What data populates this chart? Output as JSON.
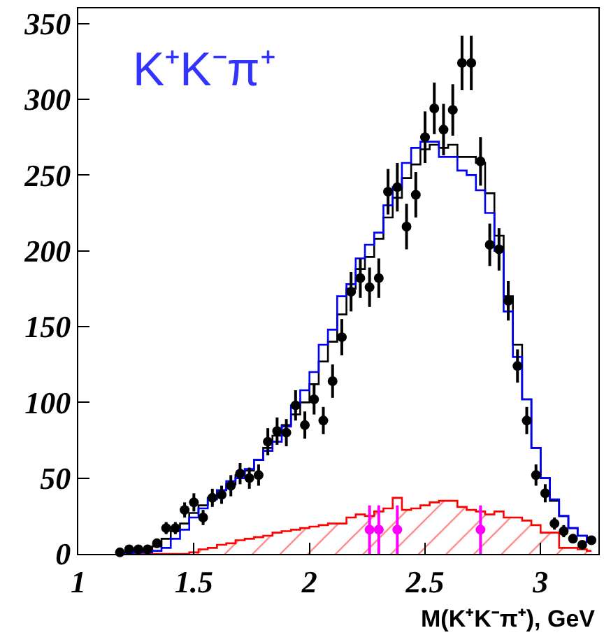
{
  "chart_data": {
    "type": "step",
    "title": "K⁺K⁻π⁺",
    "xlabel": "M(K⁺K⁻π⁺), GeV",
    "xlim": [
      1,
      3.25
    ],
    "xticks": [
      1,
      1.5,
      2,
      2.5,
      3
    ],
    "ylim": [
      0,
      360
    ],
    "yticks": [
      0,
      50,
      100,
      150,
      200,
      250,
      300,
      350
    ],
    "x": [
      1.18,
      1.22,
      1.26,
      1.3,
      1.34,
      1.38,
      1.42,
      1.46,
      1.5,
      1.54,
      1.58,
      1.62,
      1.66,
      1.7,
      1.74,
      1.78,
      1.82,
      1.86,
      1.9,
      1.94,
      1.98,
      2.02,
      2.06,
      2.1,
      2.14,
      2.18,
      2.22,
      2.26,
      2.3,
      2.34,
      2.38,
      2.42,
      2.46,
      2.5,
      2.54,
      2.58,
      2.62,
      2.66,
      2.7,
      2.74,
      2.78,
      2.82,
      2.86,
      2.9,
      2.94,
      2.98,
      3.02,
      3.06,
      3.1,
      3.14,
      3.18,
      3.22
    ],
    "series": [
      {
        "type": "area",
        "color": "#ff0000",
        "values": [
          0,
          0,
          0,
          0,
          0,
          0,
          0,
          0,
          1,
          3,
          4,
          6,
          7,
          9,
          10,
          11,
          12,
          14,
          15,
          16,
          17,
          18,
          19,
          20,
          20,
          24,
          26,
          25,
          28,
          30,
          37,
          29,
          30,
          32,
          34,
          35,
          35,
          31,
          29,
          28,
          26,
          28,
          24,
          24,
          22,
          19,
          14,
          14,
          4,
          4,
          3,
          2
        ]
      },
      {
        "color": "#000000",
        "values": [
          1,
          1,
          2,
          2,
          5,
          10,
          15,
          20,
          27,
          32,
          37,
          42,
          46,
          52,
          55,
          62,
          70,
          78,
          85,
          92,
          100,
          112,
          127,
          140,
          158,
          175,
          188,
          196,
          208,
          222,
          235,
          248,
          257,
          267,
          270,
          268,
          270,
          262,
          262,
          258,
          238,
          210,
          170,
          138,
          102,
          70,
          50,
          35,
          25,
          17,
          12,
          8
        ]
      },
      {
        "color": "#0000ff",
        "values": [
          0,
          0,
          1,
          1,
          2,
          4,
          10,
          16,
          24,
          30,
          36,
          42,
          48,
          50,
          56,
          62,
          68,
          74,
          84,
          98,
          108,
          120,
          138,
          148,
          170,
          178,
          195,
          204,
          212,
          230,
          242,
          258,
          268,
          272,
          272,
          262,
          262,
          253,
          250,
          240,
          225,
          200,
          160,
          130,
          102,
          70,
          50,
          36,
          25,
          17,
          12,
          8
        ]
      },
      {
        "type": "scatter",
        "color": "#000000",
        "marker": "circle",
        "values": [
          1,
          3,
          3,
          3,
          7,
          17,
          17,
          29,
          34,
          24,
          37,
          39,
          45,
          53,
          50,
          52,
          74,
          81,
          80,
          98,
          85,
          102,
          88,
          114,
          143,
          173,
          182,
          176,
          182,
          239,
          242,
          216,
          237,
          275,
          294,
          280,
          293,
          324,
          324,
          259,
          204,
          201,
          167,
          124,
          88,
          52,
          40,
          20,
          15,
          10,
          6,
          9
        ],
        "errors": [
          1,
          2,
          2,
          2,
          3,
          4,
          4,
          5,
          6,
          5,
          6,
          6,
          7,
          7,
          7,
          7,
          9,
          9,
          9,
          10,
          9,
          10,
          9,
          11,
          12,
          13,
          13,
          13,
          13,
          15,
          16,
          15,
          15,
          17,
          17,
          17,
          17,
          18,
          18,
          16,
          14,
          14,
          13,
          11,
          9,
          7,
          6,
          4,
          4,
          3,
          2,
          3
        ]
      },
      {
        "type": "scatter",
        "color": "#ff00ff",
        "marker": "circle",
        "x": [
          2.26,
          2.3,
          2.38,
          2.74
        ],
        "values": [
          16,
          16,
          16,
          16
        ],
        "errors": [
          16,
          16,
          16,
          16
        ]
      }
    ]
  }
}
